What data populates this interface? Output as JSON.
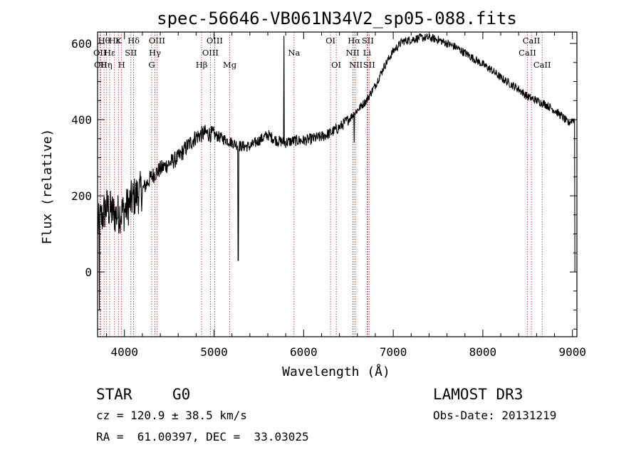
{
  "chart_data": {
    "type": "line",
    "title": "spec-56646-VB061N34V2_sp05-088.fits",
    "xlabel": "Wavelength (Å)",
    "ylabel": "Flux (relative)",
    "xlim": [
      3700,
      9050
    ],
    "ylim": [
      -170,
      630
    ],
    "xticks": [
      4000,
      5000,
      6000,
      7000,
      8000,
      9000
    ],
    "yticks": [
      0,
      200,
      400,
      600
    ],
    "lines": [
      {
        "wl": 3726,
        "label": "OII",
        "row": 2
      },
      {
        "wl": 3734,
        "label": "OII",
        "row": 3
      },
      {
        "wl": 3772,
        "label": "Hθ",
        "row": 1
      },
      {
        "wl": 3797,
        "label": "Hη",
        "row": 3
      },
      {
        "wl": 3835,
        "label": "Hε",
        "row": 2
      },
      {
        "wl": 3889,
        "label": "Hε",
        "row": 1
      },
      {
        "wl": 3933,
        "label": "K",
        "row": 1
      },
      {
        "wl": 3968,
        "label": "H",
        "row": 3
      },
      {
        "wl": 4072,
        "label": "SII",
        "row": 2
      },
      {
        "wl": 4102,
        "label": "Hδ",
        "row": 1
      },
      {
        "wl": 4304,
        "label": "G",
        "row": 3
      },
      {
        "wl": 4340,
        "label": "Hγ",
        "row": 2
      },
      {
        "wl": 4363,
        "label": "OIII",
        "row": 1
      },
      {
        "wl": 4861,
        "label": "Hβ",
        "row": 3
      },
      {
        "wl": 4959,
        "label": "OIII",
        "row": 2
      },
      {
        "wl": 5007,
        "label": "OIII",
        "row": 1
      },
      {
        "wl": 5175,
        "label": "Mg",
        "row": 3
      },
      {
        "wl": 5893,
        "label": "Na",
        "row": 2
      },
      {
        "wl": 6300,
        "label": "OI",
        "row": 1
      },
      {
        "wl": 6364,
        "label": "OI",
        "row": 3
      },
      {
        "wl": 6548,
        "label": "NII",
        "row": 2
      },
      {
        "wl": 6563,
        "label": "Hα",
        "row": 1
      },
      {
        "wl": 6583,
        "label": "NII",
        "row": 3
      },
      {
        "wl": 6708,
        "label": "Li",
        "row": 2
      },
      {
        "wl": 6716,
        "label": "SII",
        "row": 1
      },
      {
        "wl": 6731,
        "label": "SII",
        "row": 3
      },
      {
        "wl": 8498,
        "label": "CaII",
        "row": 2
      },
      {
        "wl": 8542,
        "label": "CaII",
        "row": 1
      },
      {
        "wl": 8662,
        "label": "CaII",
        "row": 3
      }
    ],
    "continuum": [
      [
        3700,
        120
      ],
      [
        3800,
        170
      ],
      [
        3900,
        150
      ],
      [
        4000,
        160
      ],
      [
        4100,
        195
      ],
      [
        4200,
        215
      ],
      [
        4300,
        250
      ],
      [
        4400,
        270
      ],
      [
        4500,
        285
      ],
      [
        4600,
        300
      ],
      [
        4700,
        330
      ],
      [
        4800,
        355
      ],
      [
        4900,
        365
      ],
      [
        5000,
        360
      ],
      [
        5100,
        350
      ],
      [
        5200,
        340
      ],
      [
        5300,
        330
      ],
      [
        5400,
        330
      ],
      [
        5500,
        345
      ],
      [
        5600,
        360
      ],
      [
        5700,
        345
      ],
      [
        5800,
        340
      ],
      [
        5900,
        345
      ],
      [
        6000,
        345
      ],
      [
        6100,
        350
      ],
      [
        6200,
        355
      ],
      [
        6300,
        365
      ],
      [
        6400,
        380
      ],
      [
        6500,
        400
      ],
      [
        6600,
        425
      ],
      [
        6700,
        450
      ],
      [
        6800,
        490
      ],
      [
        6900,
        540
      ],
      [
        7000,
        580
      ],
      [
        7100,
        605
      ],
      [
        7200,
        610
      ],
      [
        7300,
        615
      ],
      [
        7400,
        615
      ],
      [
        7500,
        610
      ],
      [
        7600,
        600
      ],
      [
        7700,
        590
      ],
      [
        7800,
        575
      ],
      [
        7900,
        560
      ],
      [
        8000,
        545
      ],
      [
        8100,
        530
      ],
      [
        8200,
        510
      ],
      [
        8300,
        495
      ],
      [
        8400,
        480
      ],
      [
        8500,
        460
      ],
      [
        8600,
        450
      ],
      [
        8700,
        440
      ],
      [
        8800,
        425
      ],
      [
        8900,
        405
      ],
      [
        8950,
        390
      ],
      [
        9000,
        400
      ]
    ],
    "features": [
      {
        "wl": 3720,
        "value": -100
      },
      {
        "wl": 5270,
        "value": 30
      },
      {
        "wl": 5780,
        "value": 620
      },
      {
        "wl": 6563,
        "value": 340
      },
      {
        "wl": 9030,
        "value": 0
      }
    ]
  },
  "info": {
    "class": "STAR",
    "subclass": "G0",
    "survey": "LAMOST DR3",
    "cz": "cz = 120.9 ± 38.5 km/s",
    "obsdate": "Obs-Date: 20131219",
    "coords": "RA =  61.00397, DEC =  33.03025"
  }
}
